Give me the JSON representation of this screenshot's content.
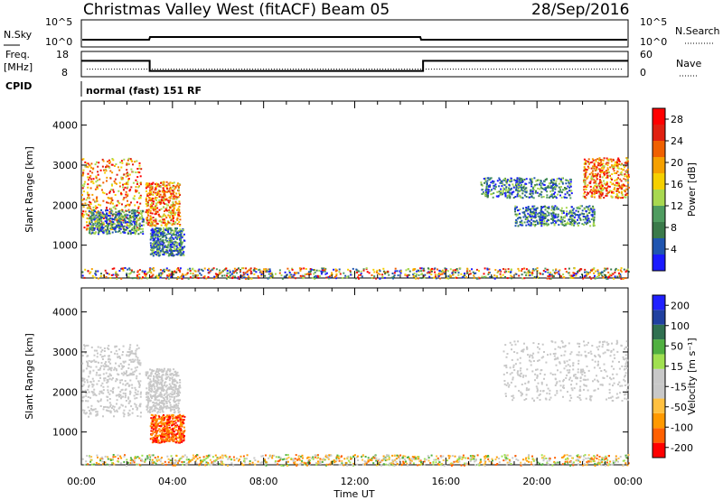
{
  "header": {
    "station": "Christmas Valley West (fitACF)",
    "beam": "Beam 05",
    "date": "28/Sep/2016"
  },
  "noise_panel": {
    "left_label": "N.Sky",
    "right_label": "N.Search",
    "left_ticks": [
      "10^5",
      "10^0"
    ],
    "right_ticks": [
      "10^5",
      "10^0"
    ]
  },
  "freq_panel": {
    "left_label_line1": "Freq.",
    "left_label_line2": "[MHz]",
    "right_label": "Nave",
    "left_ticks": [
      "18",
      "8"
    ],
    "right_ticks": [
      "60",
      "0"
    ],
    "freq_steps": [
      {
        "from": 0,
        "to": 3,
        "mhz": 14.5
      },
      {
        "from": 3,
        "to": 15,
        "mhz": 9.8
      },
      {
        "from": 15,
        "to": 24,
        "mhz": 14.5
      }
    ],
    "nave_level": 16
  },
  "cpid": {
    "label": "CPID",
    "mode": "normal (fast) 151 RF"
  },
  "colors": {
    "power_scale": [
      "#1a1aff",
      "#1f55b0",
      "#3a7a4a",
      "#4f9c60",
      "#a8d850",
      "#f5d000",
      "#f5a000",
      "#f06000",
      "#e02010",
      "#ff0000"
    ],
    "velocity_scale": [
      "#ff0000",
      "#ff6000",
      "#ff9900",
      "#ffc040",
      "#c8c8c8",
      "#c8c8c8",
      "#a0e050",
      "#50b040",
      "#307050",
      "#2040a0",
      "#2020ff"
    ],
    "ground_scatter": "#c8c8c8"
  },
  "chart_data": [
    {
      "type": "heatmap",
      "quantity": "power",
      "ylabel": "Slant Range [km]",
      "xlabel": "Time UT",
      "xlim_hours": [
        0,
        24
      ],
      "ylim_km": [
        180,
        4600
      ],
      "yticks": [
        1000,
        2000,
        3000,
        4000
      ],
      "xticks": [
        "00:00",
        "04:00",
        "08:00",
        "12:00",
        "16:00",
        "20:00",
        "00:00"
      ],
      "colorbar": {
        "label": "Power [dB]",
        "min": 0,
        "max": 30,
        "ticks": [
          4,
          8,
          12,
          16,
          20,
          24,
          28
        ]
      },
      "features": [
        {
          "t0": 0.0,
          "t1": 2.6,
          "r0": 1400,
          "r1": 3200,
          "level": "strong"
        },
        {
          "t0": 2.8,
          "t1": 4.3,
          "r0": 1500,
          "r1": 2600,
          "level": "strong"
        },
        {
          "t0": 0.3,
          "t1": 2.7,
          "r0": 1300,
          "r1": 1900,
          "level": "weak"
        },
        {
          "t0": 3.0,
          "t1": 4.5,
          "r0": 750,
          "r1": 1450,
          "level": "weak"
        },
        {
          "t0": 0.0,
          "t1": 24.0,
          "r0": 180,
          "r1": 450,
          "level": "mixed"
        },
        {
          "t0": 19.0,
          "t1": 22.5,
          "r0": 1500,
          "r1": 2000,
          "level": "weak"
        },
        {
          "t0": 22.0,
          "t1": 24.0,
          "r0": 2200,
          "r1": 3200,
          "level": "strong"
        },
        {
          "t0": 17.5,
          "t1": 21.5,
          "r0": 2200,
          "r1": 2700,
          "level": "weak"
        }
      ]
    },
    {
      "type": "heatmap",
      "quantity": "velocity",
      "ylabel": "Slant Range [km]",
      "xlabel": "Time UT",
      "xlim_hours": [
        0,
        24
      ],
      "ylim_km": [
        180,
        4600
      ],
      "yticks": [
        1000,
        2000,
        3000,
        4000
      ],
      "xticks": [
        "00:00",
        "04:00",
        "08:00",
        "12:00",
        "16:00",
        "20:00",
        "00:00"
      ],
      "colorbar": {
        "label": "Velocity [m s⁻¹]",
        "ticks": [
          "200",
          "100",
          "50",
          "15",
          "-15",
          "-50",
          "-100",
          "-200"
        ]
      },
      "features": [
        {
          "t0": 0.0,
          "t1": 2.6,
          "r0": 1400,
          "r1": 3200,
          "level": "ground"
        },
        {
          "t0": 2.8,
          "t1": 4.3,
          "r0": 1500,
          "r1": 2600,
          "level": "ground"
        },
        {
          "t0": 3.0,
          "t1": 4.5,
          "r0": 750,
          "r1": 1450,
          "level": "negative"
        },
        {
          "t0": 0.0,
          "t1": 24.0,
          "r0": 180,
          "r1": 450,
          "level": "mixed"
        },
        {
          "t0": 18.5,
          "t1": 24.0,
          "r0": 1800,
          "r1": 3300,
          "level": "ground"
        }
      ]
    }
  ]
}
